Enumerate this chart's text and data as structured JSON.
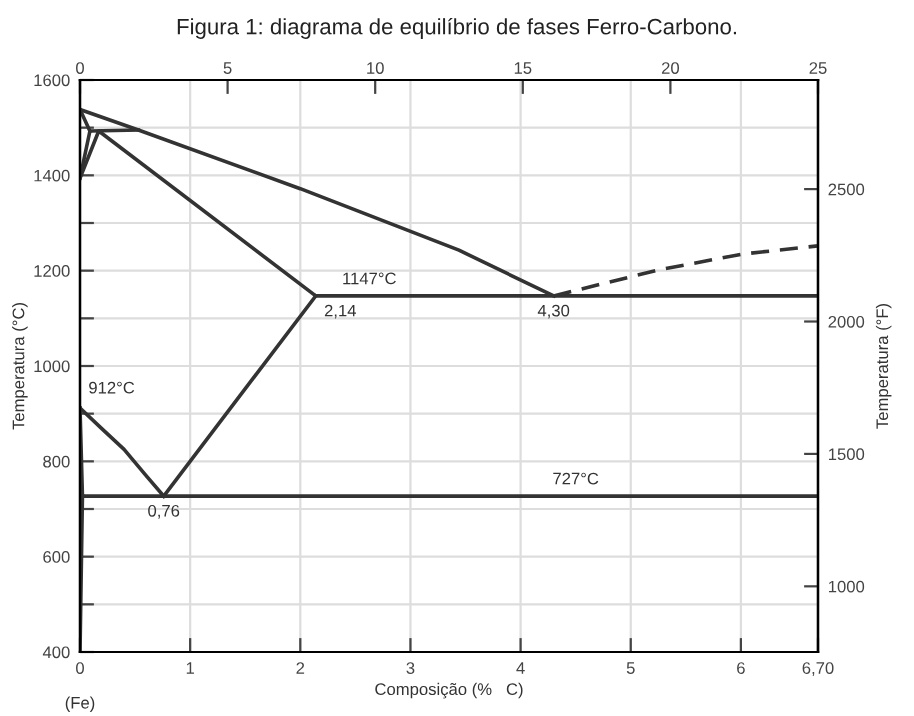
{
  "chart_data": {
    "type": "line",
    "title": "Figura 1: diagrama de equilíbrio de fases Ferro-Carbono.",
    "xlabel": "Composição (%   C)",
    "ylabel": "Temperatura (°C)",
    "y2label": "Temperatura (°F)",
    "xlim": [
      0,
      6.7
    ],
    "xticks": [
      0,
      1,
      2,
      3,
      4,
      5,
      6,
      {
        "value": 6.7,
        "label": "6,70"
      }
    ],
    "ylim": [
      400,
      1600
    ],
    "yticks": [
      400,
      {
        "value": 500,
        "label": null
      },
      600,
      {
        "value": 700,
        "label": null
      },
      800,
      {
        "value": 900,
        "label": null
      },
      1000,
      {
        "value": 1100,
        "label": null
      },
      1200,
      {
        "value": 1300,
        "label": null
      },
      1400,
      {
        "value": 1500,
        "label": null
      },
      1600
    ],
    "y2lim": [
      752,
      2912
    ],
    "y2ticks": [
      1000,
      1500,
      2000,
      2500
    ],
    "x2lim": [
      0,
      25
    ],
    "x2ticks": [
      0,
      5,
      10,
      15,
      20,
      25
    ],
    "grid": true,
    "marker": "none",
    "line_style": "solid",
    "series": [
      {
        "color": "#333333",
        "x": [
          0,
          0.53,
          2.0,
          3.44,
          4.3
        ],
        "values": [
          1538,
          1495,
          1372,
          1243,
          1147
        ]
      },
      {
        "color": "#333333",
        "x": [
          4.3,
          5.24,
          6.02,
          6.7
        ],
        "values": [
          1147,
          1201,
          1235,
          1252
        ],
        "line_style": "dashed"
      },
      {
        "color": "#333333",
        "x": [
          0,
          0.09,
          0.53
        ],
        "values": [
          1394,
          1493,
          1495
        ]
      },
      {
        "color": "#333333",
        "x": [
          0,
          0.09
        ],
        "values": [
          1538,
          1493
        ]
      },
      {
        "color": "#333333",
        "x": [
          0,
          0.17,
          2.14,
          6.7
        ],
        "values": [
          1394,
          1493,
          1147,
          1147
        ]
      },
      {
        "color": "#333333",
        "x": [
          2.14,
          0.76
        ],
        "values": [
          1147,
          727
        ]
      },
      {
        "color": "#333333",
        "x": [
          0,
          0.2,
          0.4,
          0.6,
          0.76
        ],
        "values": [
          912,
          868,
          825,
          770,
          727
        ]
      },
      {
        "color": "#333333",
        "x": [
          0,
          0.022,
          6.7
        ],
        "values": [
          912,
          727,
          727
        ]
      },
      {
        "color": "#333333",
        "x": [
          0.022,
          0
        ],
        "values": [
          727,
          400
        ]
      }
    ],
    "annotations": [
      {
        "text": "1147°C",
        "x": 3.0,
        "y": 1147
      },
      {
        "text": "2,14",
        "x": 2.14,
        "y": 1147
      },
      {
        "text": "4,30",
        "x": 4.3,
        "y": 1147
      },
      {
        "text": "912°C",
        "x": 0,
        "y": 912
      },
      {
        "text": "0,76",
        "x": 0.76,
        "y": 727
      },
      {
        "text": "727°C",
        "x": 4.5,
        "y": 727
      },
      "(Fe)"
    ]
  }
}
